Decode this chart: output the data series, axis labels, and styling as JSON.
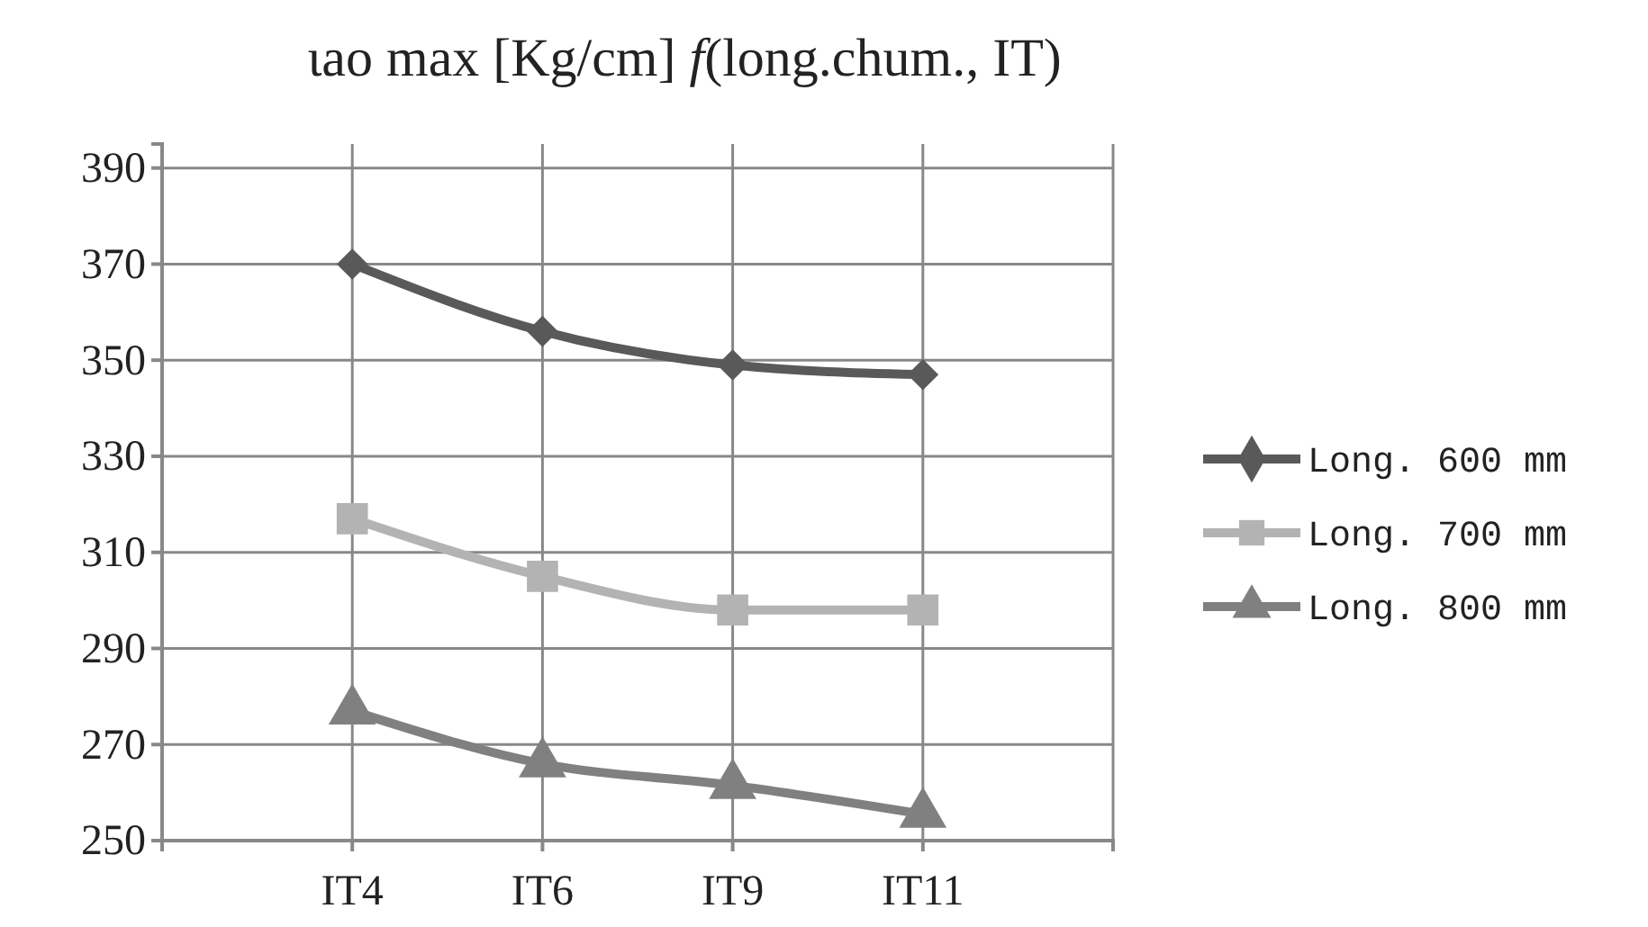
{
  "chart_data": {
    "type": "line",
    "title": "ιao max [Kg/cm] f(long.chum., IT)",
    "categories": [
      null,
      "IT4",
      "IT6",
      "IT9",
      "IT11",
      null
    ],
    "series": [
      {
        "name": "Long. 600 mm",
        "color": "#595959",
        "marker": "diamond",
        "values": [
          null,
          370,
          356,
          349,
          347,
          null
        ]
      },
      {
        "name": "Long. 700 mm",
        "color": "#b3b3b3",
        "marker": "square",
        "values": [
          null,
          317,
          305,
          298,
          298,
          null
        ]
      },
      {
        "name": "Long. 800 mm",
        "color": "#808080",
        "marker": "triangle",
        "values": [
          null,
          277,
          266,
          261.5,
          255.5,
          null
        ]
      }
    ],
    "ylim": [
      250,
      395
    ],
    "yticks": [
      250,
      270,
      290,
      310,
      330,
      350,
      370,
      390
    ],
    "grid": true,
    "legend": "right",
    "line_style": "solid"
  }
}
